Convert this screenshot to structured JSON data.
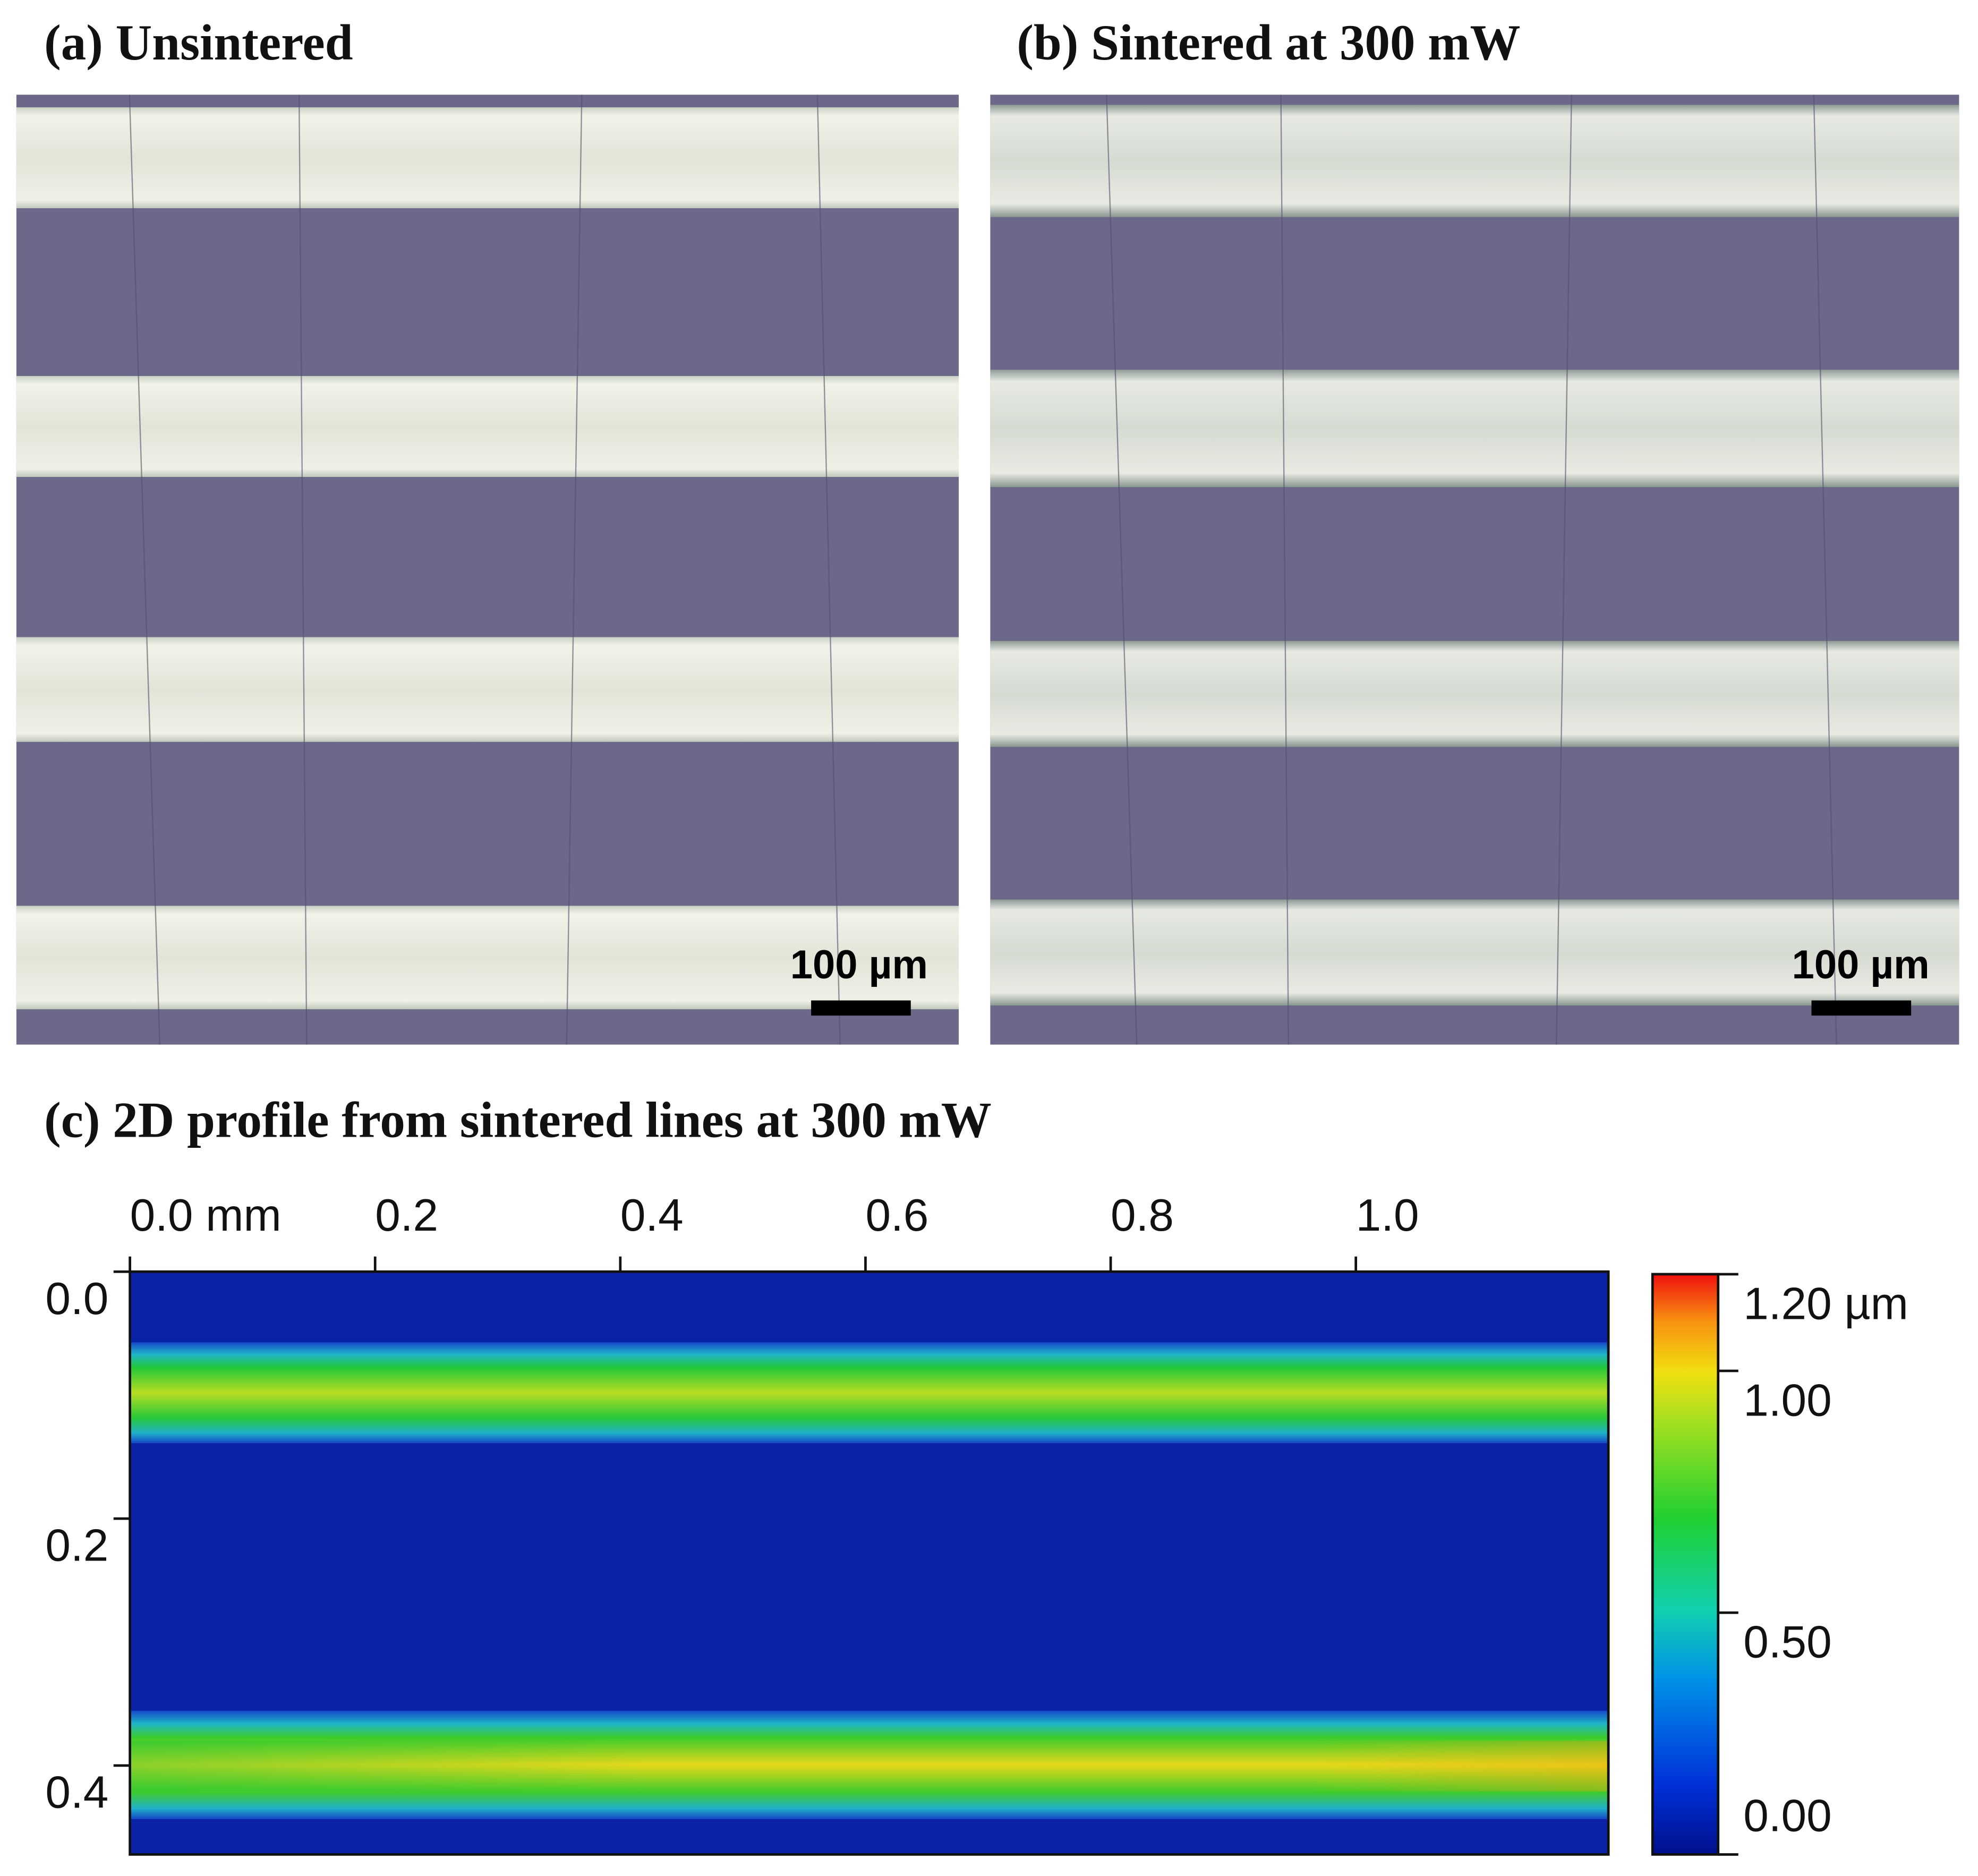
{
  "panels": [
    {
      "title": "(a) Unsintered",
      "scale_bar": "100 µm"
    },
    {
      "title": "(b) Sintered at 300 mW",
      "scale_bar": "100 µm"
    },
    {
      "title": "(c) 2D profile from sintered lines at 300 mW",
      "xlim": [
        0,
        1.206
      ],
      "xticks": [
        {
          "value": 0,
          "label": "0.0 mm"
        },
        0.2,
        0.4,
        0.6,
        0.8,
        {
          "value": 1,
          "label": "1.0"
        }
      ],
      "ylim": [
        0,
        0.472
      ],
      "yticks": [
        {
          "value": 0,
          "label": "0.0"
        },
        0.2,
        0.4
      ],
      "colorbar": {
        "lim": [
          0,
          1.2
        ],
        "ticks": [
          {
            "value": 1.2,
            "label": "1.20 µm"
          },
          {
            "value": 1,
            "label": "1.00"
          },
          {
            "value": 0.5,
            "label": "0.50"
          },
          {
            "value": 0,
            "label": "0.00"
          }
        ]
      }
    }
  ]
}
